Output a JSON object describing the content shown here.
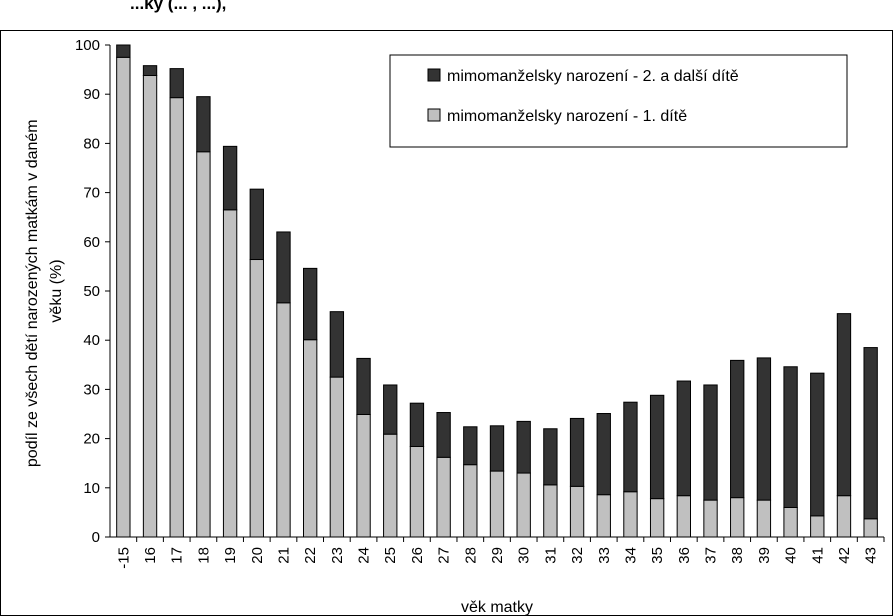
{
  "header": {
    "title": "...ky (... , ...),"
  },
  "chart_data": {
    "type": "bar",
    "stacked": true,
    "categories": [
      "-15",
      "16",
      "17",
      "18",
      "19",
      "20",
      "21",
      "22",
      "23",
      "24",
      "25",
      "26",
      "27",
      "28",
      "29",
      "30",
      "31",
      "32",
      "33",
      "34",
      "35",
      "36",
      "37",
      "38",
      "39",
      "40",
      "41",
      "42",
      "43"
    ],
    "series": [
      {
        "name": "mimomanželsky narození - 1. dítě",
        "color": "#c0c0c0",
        "values": [
          97.5,
          93.8,
          89.3,
          78.3,
          66.5,
          56.4,
          47.6,
          40.1,
          32.5,
          24.9,
          20.9,
          18.4,
          16.2,
          14.7,
          13.4,
          13.0,
          10.6,
          10.3,
          8.6,
          9.2,
          7.8,
          8.4,
          7.5,
          8.0,
          7.5,
          6.0,
          4.3,
          8.4,
          3.7
        ]
      },
      {
        "name": "mimomanželsky narození - 2. a další dítě",
        "color": "#333333",
        "values": [
          2.5,
          2.0,
          5.9,
          11.2,
          12.9,
          14.3,
          14.4,
          14.5,
          13.3,
          11.4,
          10.0,
          8.8,
          9.1,
          7.7,
          9.2,
          10.5,
          11.4,
          13.8,
          16.5,
          18.2,
          21.0,
          23.3,
          23.4,
          27.9,
          28.9,
          28.6,
          29.0,
          37.0,
          34.8
        ]
      }
    ],
    "legend_order": [
      "mimomanželsky narození - 2. a další dítě",
      "mimomanželsky narození - 1. dítě"
    ],
    "xlabel": "věk matky",
    "ylabel": "podíl ze všech dětí narozených matkám v daném věku (%)",
    "ylabel_lines": [
      "podíl ze všech dětí narozených matkám v daném",
      "věku (%)"
    ],
    "ylim": [
      0,
      100
    ],
    "yticks": [
      0,
      10,
      20,
      30,
      40,
      50,
      60,
      70,
      80,
      90,
      100
    ],
    "grid": false,
    "legend_position": "top-right"
  }
}
